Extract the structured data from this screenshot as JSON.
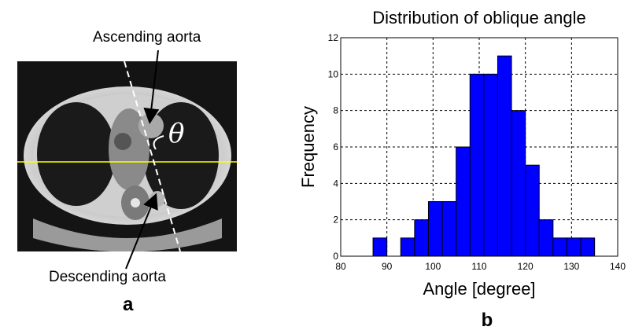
{
  "panel_a": {
    "label_top": "Ascending aorta",
    "label_bottom": "Descending aorta",
    "angle_symbol": "θ",
    "panel_letter": "a"
  },
  "panel_b": {
    "panel_letter": "b"
  },
  "chart_data": {
    "type": "bar",
    "title": "Distribution of oblique angle",
    "xlabel": "Angle [degree]",
    "ylabel": "Frequency",
    "xlim": [
      80,
      140
    ],
    "ylim": [
      0,
      12
    ],
    "x_ticks": [
      80,
      90,
      100,
      110,
      120,
      130,
      140
    ],
    "y_ticks": [
      0,
      2,
      4,
      6,
      8,
      10,
      12
    ],
    "grid": true,
    "bar_color": "#0000ff",
    "bins": [
      {
        "start": 87.0,
        "end": 90.0,
        "count": 1
      },
      {
        "start": 90.0,
        "end": 93.0,
        "count": 0
      },
      {
        "start": 93.0,
        "end": 96.0,
        "count": 1
      },
      {
        "start": 96.0,
        "end": 99.0,
        "count": 2
      },
      {
        "start": 99.0,
        "end": 102.0,
        "count": 3
      },
      {
        "start": 102.0,
        "end": 105.0,
        "count": 3
      },
      {
        "start": 105.0,
        "end": 108.0,
        "count": 6
      },
      {
        "start": 108.0,
        "end": 111.0,
        "count": 10
      },
      {
        "start": 111.0,
        "end": 114.0,
        "count": 10
      },
      {
        "start": 114.0,
        "end": 117.0,
        "count": 11
      },
      {
        "start": 117.0,
        "end": 120.0,
        "count": 8
      },
      {
        "start": 120.0,
        "end": 123.0,
        "count": 5
      },
      {
        "start": 123.0,
        "end": 126.0,
        "count": 2
      },
      {
        "start": 126.0,
        "end": 129.0,
        "count": 1
      },
      {
        "start": 129.0,
        "end": 132.0,
        "count": 1
      },
      {
        "start": 132.0,
        "end": 135.0,
        "count": 1
      }
    ]
  }
}
